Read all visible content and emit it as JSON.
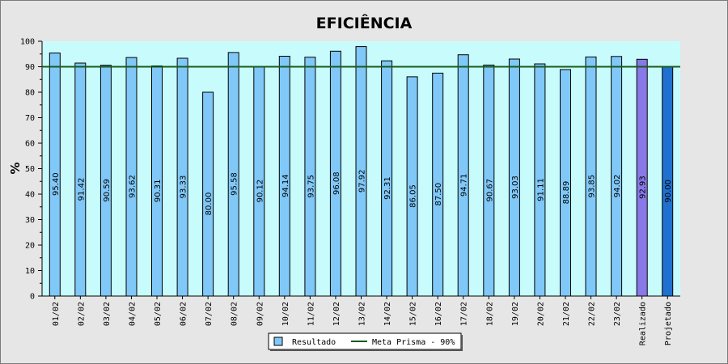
{
  "chart_data": {
    "type": "bar",
    "title": "EFICIÊNCIA",
    "xlabel": "",
    "ylabel": "%",
    "ylim": [
      0,
      100
    ],
    "yticks": [
      0,
      10,
      20,
      30,
      40,
      50,
      60,
      70,
      80,
      90,
      100
    ],
    "categories": [
      "01/02",
      "02/02",
      "03/02",
      "04/02",
      "05/02",
      "06/02",
      "07/02",
      "08/02",
      "09/02",
      "10/02",
      "11/02",
      "12/02",
      "13/02",
      "14/02",
      "15/02",
      "16/02",
      "17/02",
      "18/02",
      "19/02",
      "20/02",
      "21/02",
      "22/02",
      "23/02",
      "Realizado",
      "Projetado"
    ],
    "series": [
      {
        "name": "Resultado",
        "values": [
          95.4,
          91.42,
          90.59,
          93.62,
          90.31,
          93.33,
          80.0,
          95.58,
          90.12,
          94.14,
          93.75,
          96.08,
          97.92,
          92.31,
          86.05,
          87.5,
          94.71,
          90.67,
          93.03,
          91.11,
          88.89,
          93.85,
          94.02,
          92.93,
          90.0
        ],
        "labels": [
          "95.40",
          "91.42",
          "90.59",
          "93.62",
          "90.31",
          "93.33",
          "80.00",
          "95.58",
          "90.12",
          "94.14",
          "93.75",
          "96.08",
          "97.92",
          "92.31",
          "86.05",
          "87.50",
          "94.71",
          "90.67",
          "93.03",
          "91.11",
          "88.89",
          "93.85",
          "94.02",
          "92.93",
          "90.00"
        ]
      }
    ],
    "reference_line": {
      "name": "Meta Prisma - 90%",
      "value": 90,
      "color": "#1a5a1a"
    },
    "colors": {
      "bar": "#80c8f8",
      "realizado": "#8878e8",
      "projetado": "#2070d0",
      "plot_background": "#c8fcfc",
      "page_background": "#e6e6e6"
    },
    "grid": false,
    "legend_position": "bottom-center"
  }
}
